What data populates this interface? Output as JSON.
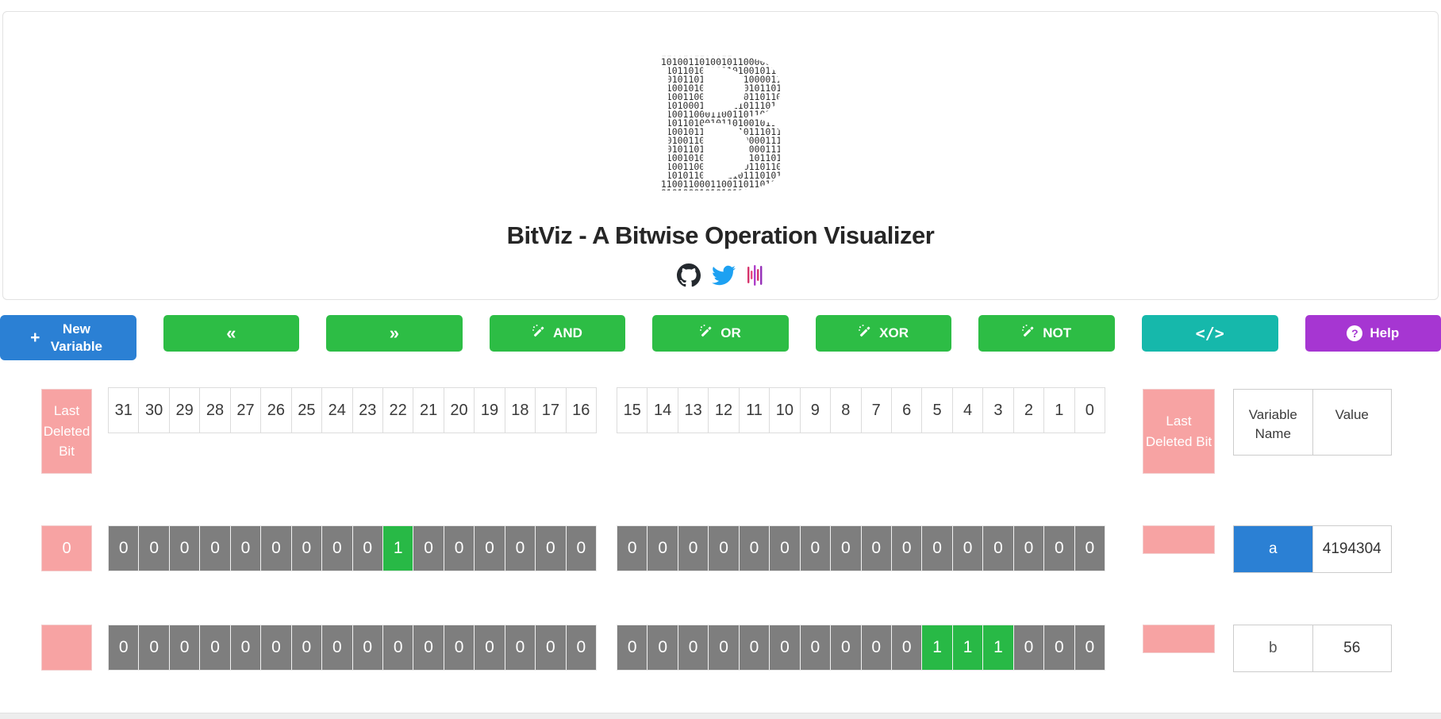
{
  "header": {
    "title": "BitViz - A Bitwise Operation Visualizer",
    "logo_rows": [
      "001010100111100110101101110",
      "101100110001100110110110110",
      "101100101100011011011010110",
      "001010011010010110000011010",
      "010101101001011010010110110",
      "001010110100101101000011011",
      "101100101011010110101101101",
      "101100110010110100110110110",
      "010101000101010110111010010",
      "101100110001100110110110110",
      "010101101001011010010110110",
      "101100101101011010111011010",
      "001010011010010110000111010",
      "001010110100101101000111011",
      "101100101011010110101101101",
      "101100110010110110110110110",
      "010101011010101101110101101",
      "101100110001100110110110110",
      "010101000101010110111010010"
    ],
    "social_icons": [
      "github-icon",
      "twitter-icon",
      "waveform-icon"
    ]
  },
  "icons": {
    "plus": "+",
    "help_glyph": "?"
  },
  "toolbar": {
    "new_variable": "New Variable",
    "shift_left": "«",
    "shift_right": "»",
    "and": "AND",
    "or": "OR",
    "xor": "XOR",
    "not": "NOT",
    "code": "</>",
    "help": "Help"
  },
  "bit_headers": {
    "high": [
      31,
      30,
      29,
      28,
      27,
      26,
      25,
      24,
      23,
      22,
      21,
      20,
      19,
      18,
      17,
      16
    ],
    "low": [
      15,
      14,
      13,
      12,
      11,
      10,
      9,
      8,
      7,
      6,
      5,
      4,
      3,
      2,
      1,
      0
    ]
  },
  "labels": {
    "last_deleted_bit": "Last Deleted Bit",
    "variable_name": "Variable Name",
    "value": "Value"
  },
  "variables": [
    {
      "name": "a",
      "value": "4194304",
      "selected": true,
      "last_deleted_bit": "0",
      "bits": [
        0,
        0,
        0,
        0,
        0,
        0,
        0,
        0,
        0,
        1,
        0,
        0,
        0,
        0,
        0,
        0,
        0,
        0,
        0,
        0,
        0,
        0,
        0,
        0,
        0,
        0,
        0,
        0,
        0,
        0,
        0,
        0
      ]
    },
    {
      "name": "b",
      "value": "56",
      "selected": false,
      "last_deleted_bit": "",
      "bits": [
        0,
        0,
        0,
        0,
        0,
        0,
        0,
        0,
        0,
        0,
        0,
        0,
        0,
        0,
        0,
        0,
        0,
        0,
        0,
        0,
        0,
        0,
        0,
        0,
        0,
        0,
        1,
        1,
        1,
        0,
        0,
        0
      ]
    }
  ],
  "colors": {
    "primary": "#2b80d4",
    "green": "#2dbd45",
    "teal": "#16b8ab",
    "purple": "#a636d2",
    "pink": "#f7a3a3",
    "bit_gray": "#7e7e7e",
    "bit_green": "#28b946",
    "github": "#24292e",
    "twitter": "#1da1f2"
  }
}
